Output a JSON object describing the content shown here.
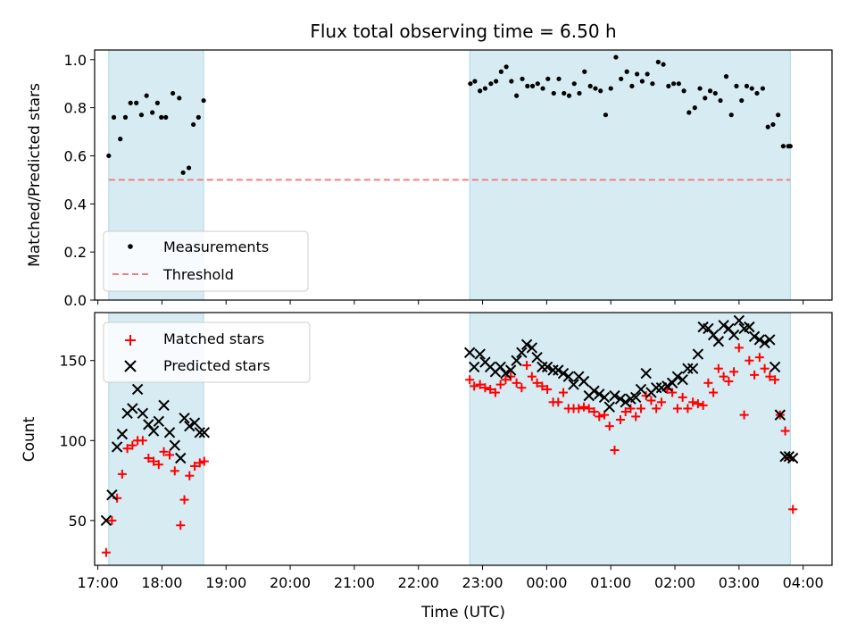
{
  "colors": {
    "band": "#add8e6",
    "measurement": "#000000",
    "threshold": "#f08080",
    "matched": "#ff0000",
    "predicted": "#000000"
  },
  "chart_data": [
    {
      "type": "scatter",
      "title": "Flux total observing time = 6.50 h",
      "xlabel": "",
      "ylabel": "Matched/Predicted stars",
      "xlim": [
        16.95,
        28.45
      ],
      "ylim": [
        0.0,
        1.04
      ],
      "yticks": [
        0.0,
        0.2,
        0.4,
        0.6,
        0.8,
        1.0
      ],
      "ytick_labels": [
        "0.0",
        "0.2",
        "0.4",
        "0.6",
        "0.8",
        "1.0"
      ],
      "bands": [
        [
          17.17,
          18.65
        ],
        [
          22.8,
          27.8
        ]
      ],
      "legend_position": "lower-left",
      "legend": [
        "Measurements",
        "Threshold"
      ],
      "threshold": {
        "name": "Threshold",
        "value": 0.5,
        "x_range": [
          17.17,
          27.8
        ]
      },
      "series": [
        {
          "name": "Measurements",
          "marker": "dot",
          "x": [
            17.17,
            17.25,
            17.35,
            17.43,
            17.51,
            17.6,
            17.68,
            17.76,
            17.85,
            17.93,
            17.99,
            18.06,
            18.17,
            18.27,
            18.33,
            18.42,
            18.49,
            18.57,
            18.65,
            22.81,
            22.88,
            22.96,
            23.04,
            23.13,
            23.21,
            23.29,
            23.37,
            23.45,
            23.53,
            23.62,
            23.7,
            23.78,
            23.86,
            23.94,
            24.02,
            24.11,
            24.19,
            24.27,
            24.35,
            24.43,
            24.51,
            24.59,
            24.68,
            24.76,
            24.84,
            24.92,
            25.0,
            25.08,
            25.16,
            25.25,
            25.33,
            25.41,
            25.49,
            25.57,
            25.65,
            25.74,
            25.82,
            25.9,
            25.98,
            26.06,
            26.14,
            26.22,
            26.31,
            26.39,
            26.47,
            26.55,
            26.63,
            26.71,
            26.8,
            26.88,
            26.96,
            27.04,
            27.12,
            27.2,
            27.28,
            27.37,
            27.45,
            27.53,
            27.61,
            27.69,
            27.77,
            27.8
          ],
          "values": [
            0.6,
            0.76,
            0.67,
            0.76,
            0.82,
            0.82,
            0.77,
            0.85,
            0.78,
            0.82,
            0.76,
            0.76,
            0.86,
            0.84,
            0.53,
            0.55,
            0.73,
            0.76,
            0.83,
            0.9,
            0.91,
            0.87,
            0.88,
            0.9,
            0.91,
            0.95,
            0.97,
            0.91,
            0.85,
            0.92,
            0.89,
            0.89,
            0.9,
            0.88,
            0.92,
            0.86,
            0.92,
            0.86,
            0.85,
            0.9,
            0.86,
            0.95,
            0.89,
            0.88,
            0.87,
            0.77,
            0.88,
            1.01,
            0.92,
            0.95,
            0.89,
            0.94,
            0.91,
            0.94,
            0.9,
            0.99,
            0.98,
            0.89,
            0.9,
            0.9,
            0.87,
            0.78,
            0.8,
            0.88,
            0.84,
            0.87,
            0.86,
            0.83,
            0.93,
            0.77,
            0.89,
            0.83,
            0.89,
            0.88,
            0.86,
            0.88,
            0.72,
            0.73,
            0.77,
            0.64,
            0.64,
            0.64
          ]
        }
      ]
    },
    {
      "type": "scatter",
      "title": "",
      "xlabel": "Time (UTC)",
      "ylabel": "Count",
      "xlim": [
        16.95,
        28.45
      ],
      "ylim": [
        22,
        180
      ],
      "yticks": [
        50,
        100,
        150
      ],
      "ytick_labels": [
        "50",
        "100",
        "150"
      ],
      "xticks": [
        17,
        18,
        19,
        20,
        21,
        22,
        23,
        24,
        25,
        26,
        27,
        28
      ],
      "xtick_labels": [
        "17:00",
        "18:00",
        "19:00",
        "20:00",
        "21:00",
        "22:00",
        "23:00",
        "00:00",
        "01:00",
        "02:00",
        "03:00",
        "04:00"
      ],
      "bands": [
        [
          17.17,
          18.65
        ],
        [
          22.8,
          27.8
        ]
      ],
      "legend_position": "upper-left",
      "legend": [
        "Matched stars",
        "Predicted stars"
      ],
      "series": [
        {
          "name": "Matched stars",
          "marker": "plus",
          "x": [
            17.13,
            17.22,
            17.3,
            17.38,
            17.46,
            17.54,
            17.62,
            17.7,
            17.79,
            17.87,
            17.95,
            18.03,
            18.12,
            18.2,
            18.29,
            18.35,
            18.43,
            18.51,
            18.59,
            18.66,
            22.8,
            22.87,
            22.96,
            23.04,
            23.12,
            23.2,
            23.28,
            23.36,
            23.44,
            23.53,
            23.61,
            23.69,
            23.77,
            23.85,
            23.93,
            24.01,
            24.1,
            24.18,
            24.26,
            24.34,
            24.42,
            24.5,
            24.58,
            24.66,
            24.74,
            24.82,
            24.9,
            24.98,
            25.06,
            25.15,
            25.23,
            25.31,
            25.39,
            25.47,
            25.55,
            25.63,
            25.71,
            25.79,
            25.88,
            25.96,
            26.04,
            26.12,
            26.2,
            26.28,
            26.36,
            26.44,
            26.52,
            26.6,
            26.68,
            26.76,
            26.84,
            26.92,
            27.0,
            27.08,
            27.16,
            27.24,
            27.32,
            27.4,
            27.48,
            27.56,
            27.64,
            27.72,
            27.78,
            27.84
          ],
          "values": [
            30,
            50,
            64,
            79,
            95,
            97,
            100,
            100,
            89,
            87,
            85,
            93,
            91,
            81,
            47,
            63,
            78,
            84,
            86,
            87,
            138,
            134,
            135,
            133,
            132,
            130,
            135,
            138,
            140,
            136,
            133,
            147,
            140,
            136,
            134,
            132,
            124,
            124,
            130,
            120,
            120,
            120,
            121,
            120,
            118,
            115,
            116,
            109,
            94,
            113,
            118,
            120,
            115,
            120,
            128,
            125,
            120,
            124,
            132,
            130,
            120,
            127,
            120,
            124,
            123,
            122,
            136,
            130,
            145,
            140,
            137,
            143,
            158,
            116,
            150,
            141,
            152,
            145,
            140,
            138,
            116,
            106,
            89,
            57
          ]
        },
        {
          "name": "Predicted stars",
          "marker": "x",
          "x": [
            17.13,
            17.22,
            17.3,
            17.38,
            17.46,
            17.54,
            17.62,
            17.7,
            17.79,
            17.87,
            17.95,
            18.03,
            18.12,
            18.2,
            18.29,
            18.35,
            18.43,
            18.51,
            18.59,
            18.66,
            22.8,
            22.87,
            22.96,
            23.04,
            23.12,
            23.2,
            23.28,
            23.36,
            23.44,
            23.53,
            23.61,
            23.69,
            23.77,
            23.85,
            23.93,
            24.01,
            24.1,
            24.18,
            24.26,
            24.34,
            24.42,
            24.5,
            24.58,
            24.66,
            24.74,
            24.82,
            24.9,
            24.98,
            25.06,
            25.15,
            25.23,
            25.31,
            25.39,
            25.47,
            25.55,
            25.63,
            25.71,
            25.79,
            25.88,
            25.96,
            26.04,
            26.12,
            26.2,
            26.28,
            26.36,
            26.44,
            26.52,
            26.6,
            26.68,
            26.76,
            26.84,
            26.92,
            27.0,
            27.08,
            27.16,
            27.24,
            27.32,
            27.4,
            27.48,
            27.56,
            27.64,
            27.72,
            27.78,
            27.84
          ],
          "values": [
            50,
            66,
            96,
            104,
            117,
            120,
            132,
            117,
            110,
            106,
            112,
            122,
            105,
            97,
            89,
            114,
            109,
            111,
            105,
            105,
            155,
            146,
            154,
            149,
            146,
            143,
            146,
            142,
            144,
            150,
            155,
            160,
            158,
            152,
            146,
            146,
            144,
            144,
            142,
            140,
            135,
            140,
            137,
            128,
            131,
            129,
            127,
            121,
            128,
            126,
            124,
            126,
            127,
            132,
            142,
            130,
            133,
            133,
            134,
            136,
            140,
            138,
            145,
            145,
            154,
            171,
            170,
            166,
            162,
            172,
            170,
            166,
            175,
            170,
            171,
            165,
            163,
            161,
            163,
            146,
            116,
            90,
            90,
            89
          ]
        }
      ]
    }
  ]
}
